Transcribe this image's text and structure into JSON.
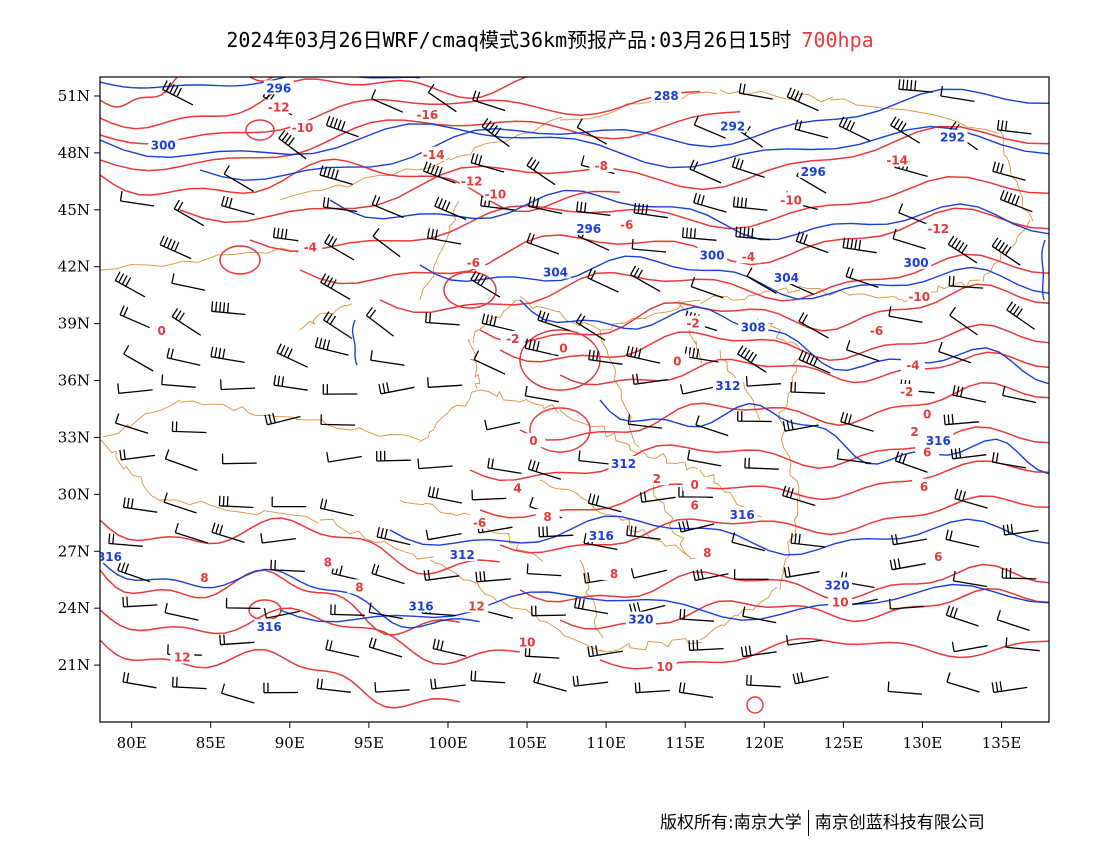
{
  "title": {
    "main": "2024年03月26日WRF/cmaq模式36km预报产品:03月26日15时",
    "level": "700hpa",
    "level_color": "#e8393a"
  },
  "map": {
    "lon_range": [
      78,
      138
    ],
    "lat_range": [
      18,
      52
    ],
    "lon_ticks": [
      {
        "v": 80,
        "label": "80E"
      },
      {
        "v": 85,
        "label": "85E"
      },
      {
        "v": 90,
        "label": "90E"
      },
      {
        "v": 95,
        "label": "95E"
      },
      {
        "v": 100,
        "label": "100E"
      },
      {
        "v": 105,
        "label": "105E"
      },
      {
        "v": 110,
        "label": "110E"
      },
      {
        "v": 115,
        "label": "115E"
      },
      {
        "v": 120,
        "label": "120E"
      },
      {
        "v": 125,
        "label": "125E"
      },
      {
        "v": 130,
        "label": "130E"
      },
      {
        "v": 135,
        "label": "135E"
      }
    ],
    "lat_ticks": [
      {
        "v": 51,
        "label": "51N"
      },
      {
        "v": 48,
        "label": "48N"
      },
      {
        "v": 45,
        "label": "45N"
      },
      {
        "v": 42,
        "label": "42N"
      },
      {
        "v": 39,
        "label": "39N"
      },
      {
        "v": 36,
        "label": "36N"
      },
      {
        "v": 33,
        "label": "33N"
      },
      {
        "v": 30,
        "label": "30N"
      },
      {
        "v": 27,
        "label": "27N"
      },
      {
        "v": 24,
        "label": "24N"
      },
      {
        "v": 21,
        "label": "21N"
      }
    ],
    "colors": {
      "temperature": "#e8393a",
      "geopotential": "#1a3fd8",
      "boundary": "#e0903a",
      "wind": "#000000"
    },
    "temperature_labels": [
      {
        "lon": 89.3,
        "lat": 50.4,
        "text": "-12"
      },
      {
        "lon": 90.8,
        "lat": 49.3,
        "text": "-10"
      },
      {
        "lon": 98.7,
        "lat": 50.0,
        "text": "-16"
      },
      {
        "lon": 99.1,
        "lat": 47.9,
        "text": "-14"
      },
      {
        "lon": 101.5,
        "lat": 46.5,
        "text": "-12"
      },
      {
        "lon": 103.0,
        "lat": 45.8,
        "text": "-10"
      },
      {
        "lon": 109.7,
        "lat": 47.3,
        "text": "-8"
      },
      {
        "lon": 111.3,
        "lat": 44.2,
        "text": "-6"
      },
      {
        "lon": 101.6,
        "lat": 42.2,
        "text": "-6"
      },
      {
        "lon": 91.3,
        "lat": 43.0,
        "text": "-4"
      },
      {
        "lon": 81.9,
        "lat": 38.6,
        "text": "0"
      },
      {
        "lon": 104.1,
        "lat": 38.2,
        "text": "-2"
      },
      {
        "lon": 107.3,
        "lat": 37.7,
        "text": "0"
      },
      {
        "lon": 115.5,
        "lat": 39.0,
        "text": "-2"
      },
      {
        "lon": 114.5,
        "lat": 37.0,
        "text": "0"
      },
      {
        "lon": 105.4,
        "lat": 32.8,
        "text": "0"
      },
      {
        "lon": 104.4,
        "lat": 30.3,
        "text": "4"
      },
      {
        "lon": 102.0,
        "lat": 28.5,
        "text": "-6"
      },
      {
        "lon": 106.3,
        "lat": 28.8,
        "text": "8"
      },
      {
        "lon": 113.2,
        "lat": 30.8,
        "text": "2"
      },
      {
        "lon": 115.6,
        "lat": 30.5,
        "text": "0"
      },
      {
        "lon": 115.6,
        "lat": 29.4,
        "text": "6"
      },
      {
        "lon": 116.4,
        "lat": 26.9,
        "text": "8"
      },
      {
        "lon": 110.5,
        "lat": 25.8,
        "text": "8"
      },
      {
        "lon": 101.8,
        "lat": 24.1,
        "text": "12"
      },
      {
        "lon": 105.0,
        "lat": 22.2,
        "text": "10"
      },
      {
        "lon": 113.7,
        "lat": 20.9,
        "text": "10"
      },
      {
        "lon": 83.2,
        "lat": 21.4,
        "text": "12"
      },
      {
        "lon": 84.6,
        "lat": 25.6,
        "text": "8"
      },
      {
        "lon": 92.4,
        "lat": 26.4,
        "text": "8"
      },
      {
        "lon": 94.4,
        "lat": 25.1,
        "text": "8"
      },
      {
        "lon": 121.7,
        "lat": 45.5,
        "text": "-10"
      },
      {
        "lon": 119.0,
        "lat": 42.5,
        "text": "-4"
      },
      {
        "lon": 128.4,
        "lat": 47.6,
        "text": "-14"
      },
      {
        "lon": 131.0,
        "lat": 44.0,
        "text": "-12"
      },
      {
        "lon": 129.8,
        "lat": 40.4,
        "text": "-10"
      },
      {
        "lon": 127.1,
        "lat": 38.6,
        "text": "-6"
      },
      {
        "lon": 129.4,
        "lat": 36.8,
        "text": "-4"
      },
      {
        "lon": 129.0,
        "lat": 35.4,
        "text": "-2"
      },
      {
        "lon": 130.3,
        "lat": 34.2,
        "text": "0"
      },
      {
        "lon": 129.5,
        "lat": 33.3,
        "text": "2"
      },
      {
        "lon": 130.3,
        "lat": 32.2,
        "text": "6"
      },
      {
        "lon": 130.1,
        "lat": 30.4,
        "text": "6"
      },
      {
        "lon": 131.0,
        "lat": 26.7,
        "text": "6"
      },
      {
        "lon": 124.8,
        "lat": 24.3,
        "text": "10"
      }
    ],
    "geopotential_labels": [
      {
        "lon": 89.3,
        "lat": 51.4,
        "text": "296"
      },
      {
        "lon": 82.0,
        "lat": 48.4,
        "text": "300"
      },
      {
        "lon": 113.8,
        "lat": 51.0,
        "text": "288"
      },
      {
        "lon": 118.0,
        "lat": 49.4,
        "text": "292"
      },
      {
        "lon": 123.1,
        "lat": 47.0,
        "text": "296"
      },
      {
        "lon": 108.9,
        "lat": 44.0,
        "text": "296"
      },
      {
        "lon": 116.7,
        "lat": 42.6,
        "text": "300"
      },
      {
        "lon": 121.4,
        "lat": 41.4,
        "text": "304"
      },
      {
        "lon": 106.8,
        "lat": 41.7,
        "text": "304"
      },
      {
        "lon": 119.3,
        "lat": 38.8,
        "text": "308"
      },
      {
        "lon": 117.7,
        "lat": 35.7,
        "text": "312"
      },
      {
        "lon": 111.1,
        "lat": 31.6,
        "text": "312"
      },
      {
        "lon": 118.6,
        "lat": 28.9,
        "text": "316"
      },
      {
        "lon": 109.7,
        "lat": 27.8,
        "text": "316"
      },
      {
        "lon": 100.9,
        "lat": 26.8,
        "text": "312"
      },
      {
        "lon": 98.3,
        "lat": 24.1,
        "text": "316"
      },
      {
        "lon": 88.7,
        "lat": 23.0,
        "text": "316"
      },
      {
        "lon": 78.6,
        "lat": 26.7,
        "text": "316"
      },
      {
        "lon": 112.2,
        "lat": 23.4,
        "text": "320"
      },
      {
        "lon": 124.6,
        "lat": 25.2,
        "text": "320"
      },
      {
        "lon": 131.0,
        "lat": 32.8,
        "text": "316"
      },
      {
        "lon": 131.9,
        "lat": 48.8,
        "text": "292"
      },
      {
        "lon": 129.6,
        "lat": 42.2,
        "text": "300"
      }
    ]
  },
  "credit": {
    "left": "版权所有:南京大学",
    "right": "南京创蓝科技有限公司"
  }
}
